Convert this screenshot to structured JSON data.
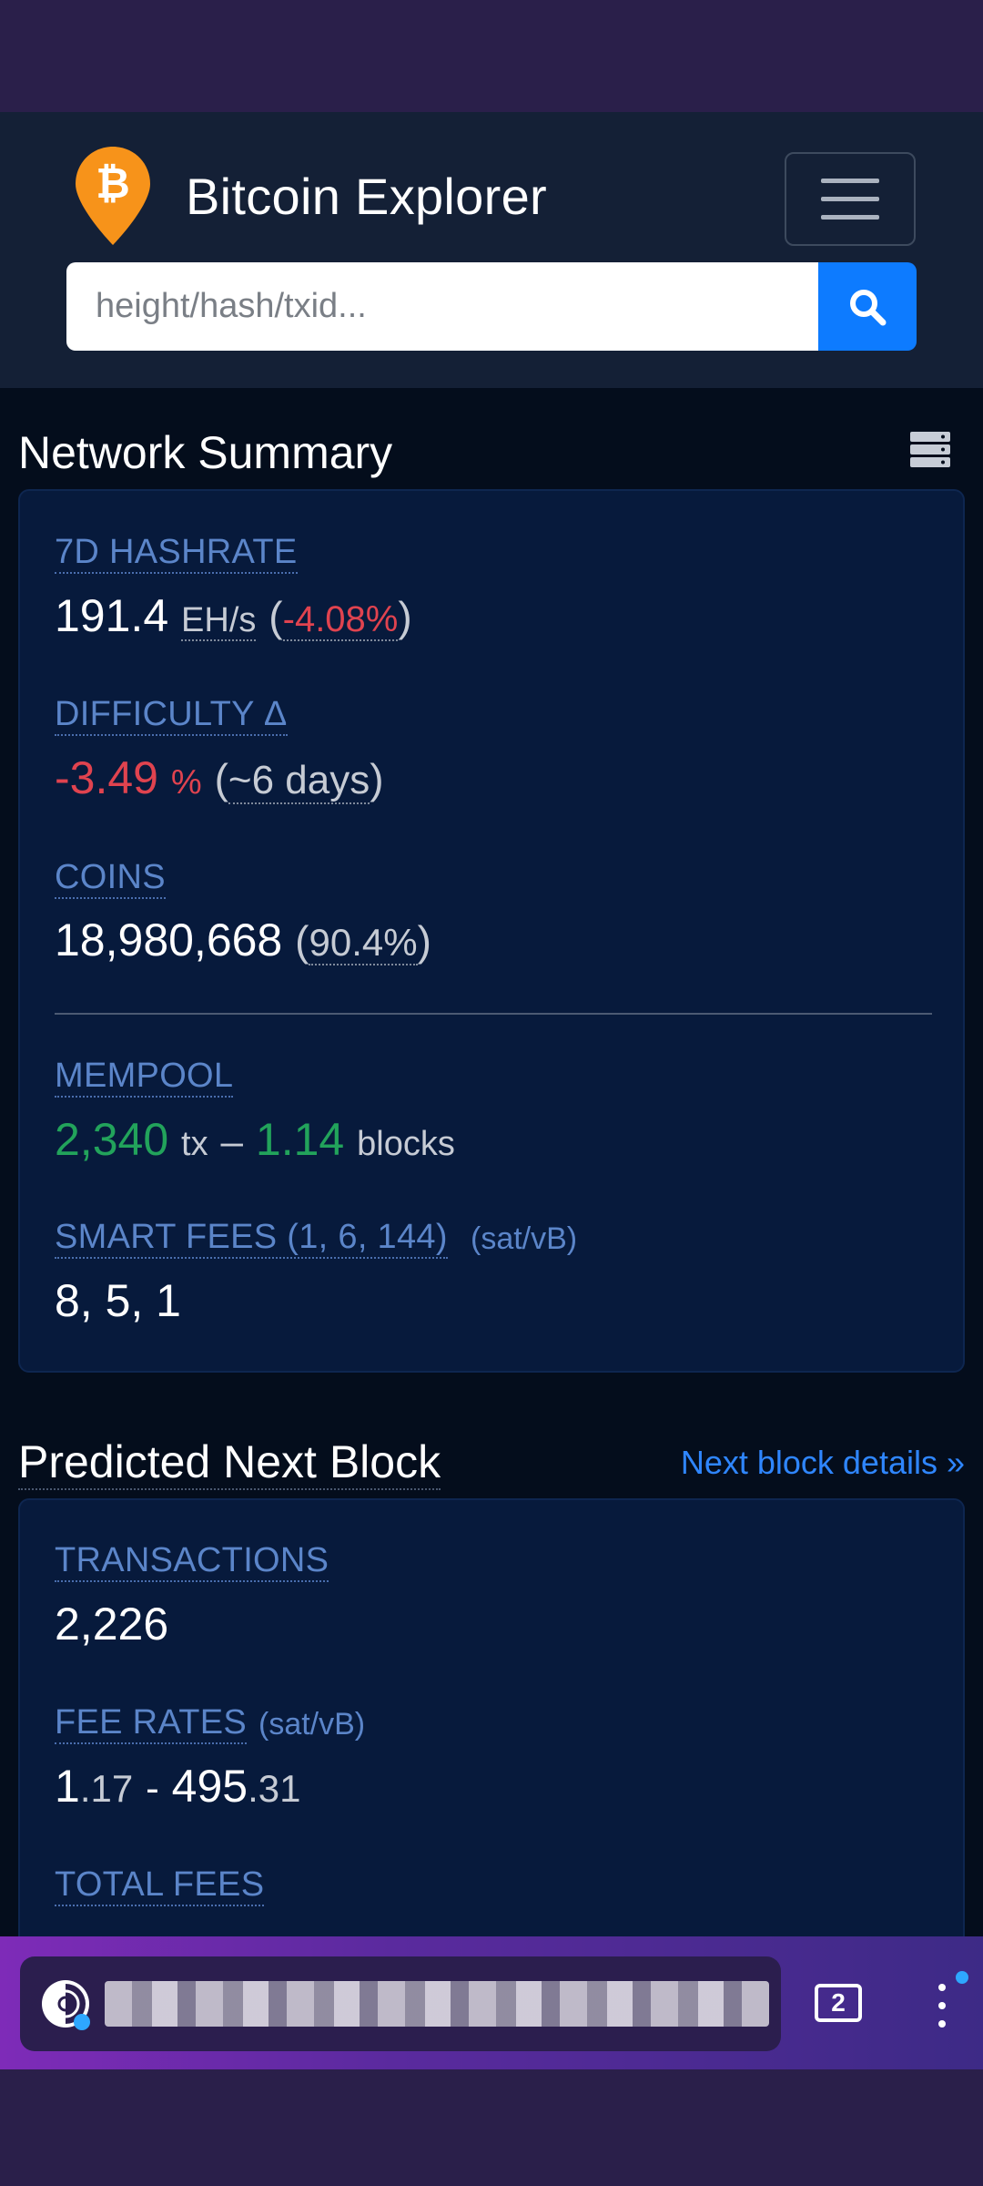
{
  "header": {
    "brand_title": "Bitcoin Explorer",
    "search_placeholder": "height/hash/txid...",
    "logo_icon": "bitcoin-pin-icon",
    "menu_icon": "hamburger-icon",
    "search_icon": "search-icon"
  },
  "network_summary": {
    "title": "Network Summary",
    "hashrate": {
      "label": "7D HASHRATE",
      "value": "191.4",
      "unit": "EH/s",
      "change": "-4.08%"
    },
    "difficulty": {
      "label": "DIFFICULTY Δ",
      "value": "-3.49",
      "unit": "%",
      "eta": "~6 days"
    },
    "coins": {
      "label": "COINS",
      "value": "18,980,668",
      "percent": "90.4%"
    },
    "mempool": {
      "label": "MEMPOOL",
      "tx_count": "2,340",
      "tx_unit": "tx",
      "dash": "–",
      "blocks": "1.14",
      "blocks_unit": "blocks"
    },
    "smart_fees": {
      "label": "SMART FEES (1, 6, 144)",
      "unit": "(sat/vB)",
      "value": "8, 5, 1"
    }
  },
  "next_block": {
    "title": "Predicted Next Block",
    "details_link": "Next block details »",
    "transactions": {
      "label": "TRANSACTIONS",
      "value": "2,226"
    },
    "fee_rates": {
      "label": "FEE RATES",
      "unit": "(sat/vB)",
      "min_int": "1",
      "min_dec": ".17",
      "sep": "-",
      "max_int": "495",
      "max_dec": ".31"
    },
    "total_fees": {
      "label": "TOTAL FEES"
    }
  },
  "browser": {
    "tab_count": "2"
  },
  "colors": {
    "accent": "#0d7bff",
    "negative": "#e0434f",
    "positive": "#22a35b",
    "label": "#5b85c9"
  }
}
